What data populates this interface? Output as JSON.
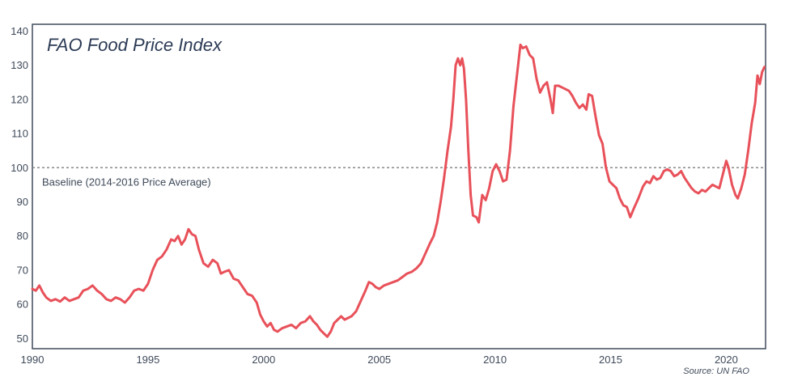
{
  "chart_data": {
    "type": "line",
    "title": "FAO Food Price Index",
    "xlabel": "",
    "ylabel": "",
    "xlim": [
      1990,
      2021.7
    ],
    "ylim": [
      47,
      142
    ],
    "x_ticks": [
      1990,
      1995,
      2000,
      2005,
      2010,
      2015,
      2020
    ],
    "y_ticks": [
      50,
      60,
      70,
      80,
      90,
      100,
      110,
      120,
      130,
      140
    ],
    "grid": false,
    "legend": "none",
    "line_color": "#e8515a",
    "baseline": {
      "value": 100,
      "label": "Baseline (2014-2016 Price Average)",
      "color": "#8a8a8a"
    },
    "source": "Source: UN FAO",
    "series": [
      {
        "points": [
          [
            1990.0,
            64.5
          ],
          [
            1990.15,
            64.0
          ],
          [
            1990.3,
            65.5
          ],
          [
            1990.45,
            63.5
          ],
          [
            1990.6,
            62.0
          ],
          [
            1990.8,
            61.0
          ],
          [
            1991.0,
            61.5
          ],
          [
            1991.2,
            60.8
          ],
          [
            1991.4,
            62.0
          ],
          [
            1991.6,
            61.0
          ],
          [
            1991.8,
            61.5
          ],
          [
            1992.0,
            62.0
          ],
          [
            1992.2,
            64.0
          ],
          [
            1992.4,
            64.5
          ],
          [
            1992.6,
            65.5
          ],
          [
            1992.8,
            64.0
          ],
          [
            1993.0,
            63.0
          ],
          [
            1993.2,
            61.5
          ],
          [
            1993.4,
            61.0
          ],
          [
            1993.6,
            62.0
          ],
          [
            1993.8,
            61.5
          ],
          [
            1994.0,
            60.5
          ],
          [
            1994.2,
            62.0
          ],
          [
            1994.4,
            64.0
          ],
          [
            1994.6,
            64.5
          ],
          [
            1994.8,
            64.0
          ],
          [
            1995.0,
            66.0
          ],
          [
            1995.2,
            70.0
          ],
          [
            1995.4,
            73.0
          ],
          [
            1995.6,
            74.0
          ],
          [
            1995.8,
            76.0
          ],
          [
            1996.0,
            79.0
          ],
          [
            1996.15,
            78.5
          ],
          [
            1996.3,
            80.0
          ],
          [
            1996.45,
            77.5
          ],
          [
            1996.6,
            79.0
          ],
          [
            1996.75,
            82.0
          ],
          [
            1996.9,
            80.5
          ],
          [
            1997.05,
            80.0
          ],
          [
            1997.2,
            76.0
          ],
          [
            1997.4,
            72.0
          ],
          [
            1997.6,
            71.0
          ],
          [
            1997.8,
            73.0
          ],
          [
            1998.0,
            72.0
          ],
          [
            1998.15,
            69.0
          ],
          [
            1998.3,
            69.5
          ],
          [
            1998.5,
            70.0
          ],
          [
            1998.7,
            67.5
          ],
          [
            1998.9,
            67.0
          ],
          [
            1999.1,
            65.0
          ],
          [
            1999.3,
            63.0
          ],
          [
            1999.5,
            62.5
          ],
          [
            1999.7,
            60.5
          ],
          [
            1999.85,
            57.0
          ],
          [
            2000.0,
            55.0
          ],
          [
            2000.15,
            53.5
          ],
          [
            2000.3,
            54.5
          ],
          [
            2000.45,
            52.5
          ],
          [
            2000.6,
            52.0
          ],
          [
            2000.8,
            53.0
          ],
          [
            2001.0,
            53.5
          ],
          [
            2001.2,
            54.0
          ],
          [
            2001.4,
            53.0
          ],
          [
            2001.6,
            54.5
          ],
          [
            2001.8,
            55.0
          ],
          [
            2002.0,
            56.5
          ],
          [
            2002.15,
            55.0
          ],
          [
            2002.3,
            54.0
          ],
          [
            2002.45,
            52.5
          ],
          [
            2002.6,
            51.5
          ],
          [
            2002.75,
            50.5
          ],
          [
            2002.9,
            52.0
          ],
          [
            2003.05,
            54.5
          ],
          [
            2003.2,
            55.5
          ],
          [
            2003.35,
            56.5
          ],
          [
            2003.5,
            55.5
          ],
          [
            2003.65,
            56.0
          ],
          [
            2003.8,
            56.5
          ],
          [
            2004.0,
            58.0
          ],
          [
            2004.2,
            61.0
          ],
          [
            2004.4,
            64.0
          ],
          [
            2004.55,
            66.5
          ],
          [
            2004.7,
            66.0
          ],
          [
            2004.85,
            65.0
          ],
          [
            2005.0,
            64.5
          ],
          [
            2005.2,
            65.5
          ],
          [
            2005.4,
            66.0
          ],
          [
            2005.6,
            66.5
          ],
          [
            2005.8,
            67.0
          ],
          [
            2006.0,
            68.0
          ],
          [
            2006.2,
            69.0
          ],
          [
            2006.4,
            69.5
          ],
          [
            2006.6,
            70.5
          ],
          [
            2006.8,
            72.0
          ],
          [
            2007.0,
            75.0
          ],
          [
            2007.2,
            78.0
          ],
          [
            2007.35,
            80.0
          ],
          [
            2007.5,
            84.0
          ],
          [
            2007.65,
            90.0
          ],
          [
            2007.8,
            97.0
          ],
          [
            2007.95,
            105.0
          ],
          [
            2008.1,
            112.0
          ],
          [
            2008.2,
            120.0
          ],
          [
            2008.3,
            130.0
          ],
          [
            2008.4,
            132.0
          ],
          [
            2008.5,
            130.0
          ],
          [
            2008.58,
            132.0
          ],
          [
            2008.66,
            129.0
          ],
          [
            2008.75,
            120.0
          ],
          [
            2008.85,
            105.0
          ],
          [
            2008.95,
            92.0
          ],
          [
            2009.05,
            86.0
          ],
          [
            2009.2,
            85.5
          ],
          [
            2009.3,
            84.0
          ],
          [
            2009.45,
            92.0
          ],
          [
            2009.6,
            90.5
          ],
          [
            2009.75,
            94.0
          ],
          [
            2009.9,
            99.0
          ],
          [
            2010.05,
            101.0
          ],
          [
            2010.2,
            99.0
          ],
          [
            2010.35,
            96.0
          ],
          [
            2010.5,
            96.5
          ],
          [
            2010.65,
            105.0
          ],
          [
            2010.8,
            118.0
          ],
          [
            2010.95,
            127.0
          ],
          [
            2011.1,
            136.0
          ],
          [
            2011.2,
            135.0
          ],
          [
            2011.35,
            135.5
          ],
          [
            2011.5,
            133.0
          ],
          [
            2011.65,
            132.0
          ],
          [
            2011.8,
            126.0
          ],
          [
            2011.95,
            122.0
          ],
          [
            2012.1,
            124.0
          ],
          [
            2012.25,
            125.0
          ],
          [
            2012.4,
            120.0
          ],
          [
            2012.5,
            116.0
          ],
          [
            2012.6,
            124.0
          ],
          [
            2012.75,
            124.0
          ],
          [
            2012.9,
            123.5
          ],
          [
            2013.05,
            123.0
          ],
          [
            2013.2,
            122.5
          ],
          [
            2013.35,
            121.0
          ],
          [
            2013.5,
            119.0
          ],
          [
            2013.65,
            117.5
          ],
          [
            2013.8,
            118.5
          ],
          [
            2013.95,
            117.0
          ],
          [
            2014.05,
            121.5
          ],
          [
            2014.2,
            121.0
          ],
          [
            2014.35,
            115.0
          ],
          [
            2014.5,
            109.5
          ],
          [
            2014.65,
            107.0
          ],
          [
            2014.8,
            100.0
          ],
          [
            2014.95,
            96.0
          ],
          [
            2015.1,
            95.0
          ],
          [
            2015.25,
            94.0
          ],
          [
            2015.4,
            91.0
          ],
          [
            2015.55,
            89.0
          ],
          [
            2015.7,
            88.5
          ],
          [
            2015.85,
            85.5
          ],
          [
            2016.0,
            88.0
          ],
          [
            2016.2,
            91.0
          ],
          [
            2016.4,
            94.5
          ],
          [
            2016.55,
            96.0
          ],
          [
            2016.7,
            95.5
          ],
          [
            2016.85,
            97.5
          ],
          [
            2017.0,
            96.5
          ],
          [
            2017.15,
            97.0
          ],
          [
            2017.3,
            99.0
          ],
          [
            2017.45,
            99.5
          ],
          [
            2017.6,
            99.0
          ],
          [
            2017.75,
            97.5
          ],
          [
            2017.9,
            98.0
          ],
          [
            2018.05,
            99.0
          ],
          [
            2018.2,
            97.0
          ],
          [
            2018.35,
            95.5
          ],
          [
            2018.5,
            94.0
          ],
          [
            2018.65,
            93.0
          ],
          [
            2018.8,
            92.5
          ],
          [
            2018.95,
            93.5
          ],
          [
            2019.1,
            93.0
          ],
          [
            2019.25,
            94.0
          ],
          [
            2019.4,
            95.0
          ],
          [
            2019.55,
            94.5
          ],
          [
            2019.7,
            94.0
          ],
          [
            2019.85,
            98.0
          ],
          [
            2020.0,
            102.0
          ],
          [
            2020.1,
            100.0
          ],
          [
            2020.25,
            95.0
          ],
          [
            2020.4,
            92.0
          ],
          [
            2020.5,
            91.0
          ],
          [
            2020.65,
            94.0
          ],
          [
            2020.8,
            98.0
          ],
          [
            2020.95,
            105.0
          ],
          [
            2021.1,
            113.0
          ],
          [
            2021.25,
            119.0
          ],
          [
            2021.35,
            127.0
          ],
          [
            2021.45,
            124.5
          ],
          [
            2021.55,
            128.0
          ],
          [
            2021.65,
            129.5
          ]
        ]
      }
    ]
  }
}
